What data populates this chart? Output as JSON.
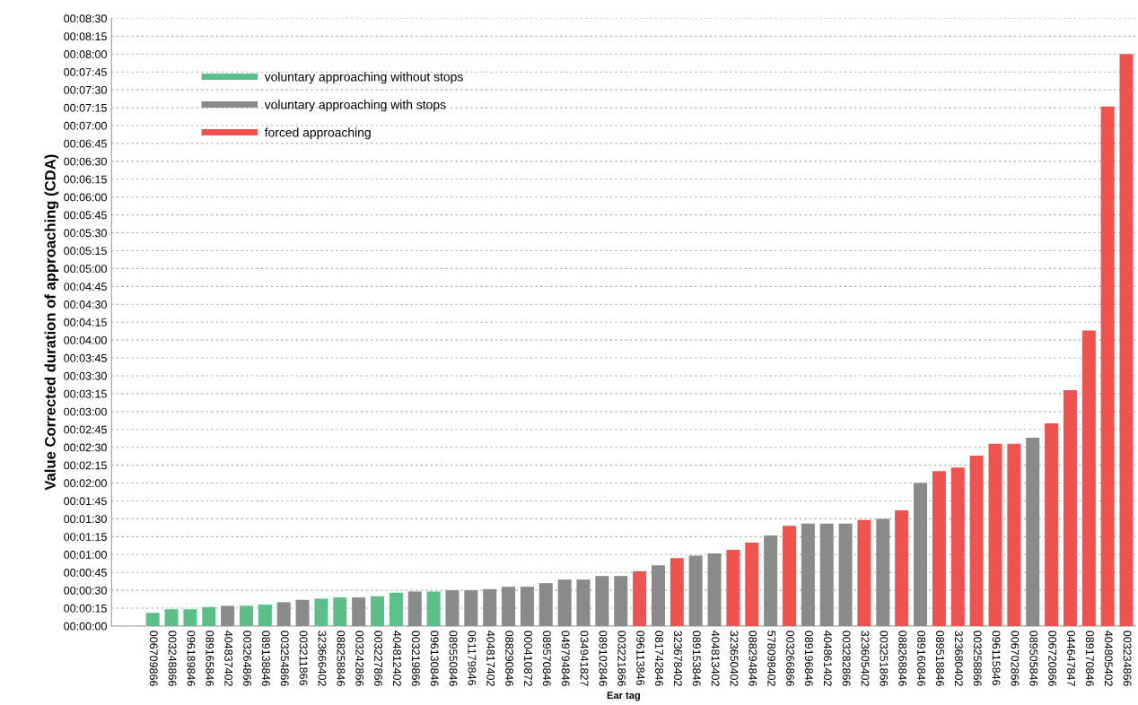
{
  "chart_data": {
    "type": "bar",
    "xlabel": "Ear tag",
    "ylabel": "Value Corrected duration of approaching (CDA)",
    "categories": [
      "006709866",
      "003248866",
      "096189846",
      "089165846",
      "404837402",
      "003264866",
      "089138846",
      "003254866",
      "003211866",
      "323666402",
      "088258846",
      "003242866",
      "003227866",
      "404812402",
      "003219866",
      "096130846",
      "089550846",
      "061179846",
      "404817402",
      "088290846",
      "000410872",
      "089570846",
      "049794846",
      "034941827",
      "089102846",
      "003221866",
      "096113846",
      "081742846",
      "323678402",
      "089153846",
      "404813402",
      "323650402",
      "088294846",
      "578098402",
      "003266866",
      "089196846",
      "404861402",
      "003282866",
      "323605402",
      "003251866",
      "088268846",
      "089160846",
      "089518846",
      "323680402",
      "003258866",
      "096115846",
      "006702866",
      "089505846",
      "006720866",
      "044647847",
      "089170846",
      "404805402",
      "003234866"
    ],
    "series": [
      {
        "name": "voluntary approaching without stops",
        "color": "#5bbf87",
        "values": [
          11,
          14,
          14,
          16,
          null,
          17,
          18,
          null,
          null,
          23,
          24,
          null,
          25,
          28,
          null,
          29,
          null,
          null,
          null,
          null,
          null,
          null,
          null,
          null,
          null,
          null,
          null,
          null,
          null,
          null,
          null,
          null,
          null,
          null,
          null,
          null,
          null,
          null,
          null,
          null,
          null,
          null,
          null,
          null,
          null,
          null,
          null,
          null,
          null,
          null,
          null,
          null,
          null
        ]
      },
      {
        "name": "voluntary approaching with stops",
        "color": "#8a8a8a",
        "values": [
          null,
          null,
          null,
          null,
          17,
          null,
          null,
          20,
          22,
          null,
          null,
          24,
          null,
          null,
          29,
          null,
          30,
          30,
          31,
          33,
          33,
          36,
          39,
          39,
          42,
          42,
          null,
          51,
          null,
          59,
          61,
          null,
          null,
          76,
          null,
          86,
          86,
          86,
          null,
          90,
          null,
          120,
          null,
          null,
          null,
          null,
          null,
          158,
          null,
          null,
          null,
          null,
          null
        ]
      },
      {
        "name": "forced approaching",
        "color": "#ef5350",
        "values": [
          null,
          null,
          null,
          null,
          null,
          null,
          null,
          null,
          null,
          null,
          null,
          null,
          null,
          null,
          null,
          null,
          null,
          null,
          null,
          null,
          null,
          null,
          null,
          null,
          null,
          null,
          46,
          null,
          57,
          null,
          null,
          64,
          70,
          null,
          84,
          null,
          null,
          null,
          89,
          null,
          97,
          null,
          130,
          133,
          143,
          153,
          153,
          null,
          170,
          198,
          248,
          436,
          480
        ]
      }
    ],
    "ylim": [
      0,
      510
    ],
    "yticks": [
      {
        "value": 0,
        "label": "00:00:00"
      },
      {
        "value": 15,
        "label": "00:00:15"
      },
      {
        "value": 30,
        "label": "00:00:30"
      },
      {
        "value": 45,
        "label": "00:00:45"
      },
      {
        "value": 60,
        "label": "00:01:00"
      },
      {
        "value": 75,
        "label": "00:01:15"
      },
      {
        "value": 90,
        "label": "00:01:30"
      },
      {
        "value": 105,
        "label": "00:01:45"
      },
      {
        "value": 120,
        "label": "00:02:00"
      },
      {
        "value": 135,
        "label": "00:02:15"
      },
      {
        "value": 150,
        "label": "00:02:30"
      },
      {
        "value": 165,
        "label": "00:02:45"
      },
      {
        "value": 180,
        "label": "00:03:00"
      },
      {
        "value": 195,
        "label": "00:03:15"
      },
      {
        "value": 210,
        "label": "00:03:30"
      },
      {
        "value": 225,
        "label": "00:03:45"
      },
      {
        "value": 240,
        "label": "00:04:00"
      },
      {
        "value": 255,
        "label": "00:04:15"
      },
      {
        "value": 270,
        "label": "00:04:30"
      },
      {
        "value": 285,
        "label": "00:04:45"
      },
      {
        "value": 300,
        "label": "00:05:00"
      },
      {
        "value": 315,
        "label": "00:05:15"
      },
      {
        "value": 330,
        "label": "00:05:30"
      },
      {
        "value": 345,
        "label": "00:05:45"
      },
      {
        "value": 360,
        "label": "00:06:00"
      },
      {
        "value": 375,
        "label": "00:06:15"
      },
      {
        "value": 390,
        "label": "00:06:30"
      },
      {
        "value": 405,
        "label": "00:06:45"
      },
      {
        "value": 420,
        "label": "00:07:00"
      },
      {
        "value": 435,
        "label": "00:07:15"
      },
      {
        "value": 450,
        "label": "00:07:30"
      },
      {
        "value": 465,
        "label": "00:07:45"
      },
      {
        "value": 480,
        "label": "00:08:00"
      },
      {
        "value": 495,
        "label": "00:08:15"
      },
      {
        "value": 510,
        "label": "00:08:30"
      }
    ],
    "grid": "y",
    "legend": "top left"
  }
}
